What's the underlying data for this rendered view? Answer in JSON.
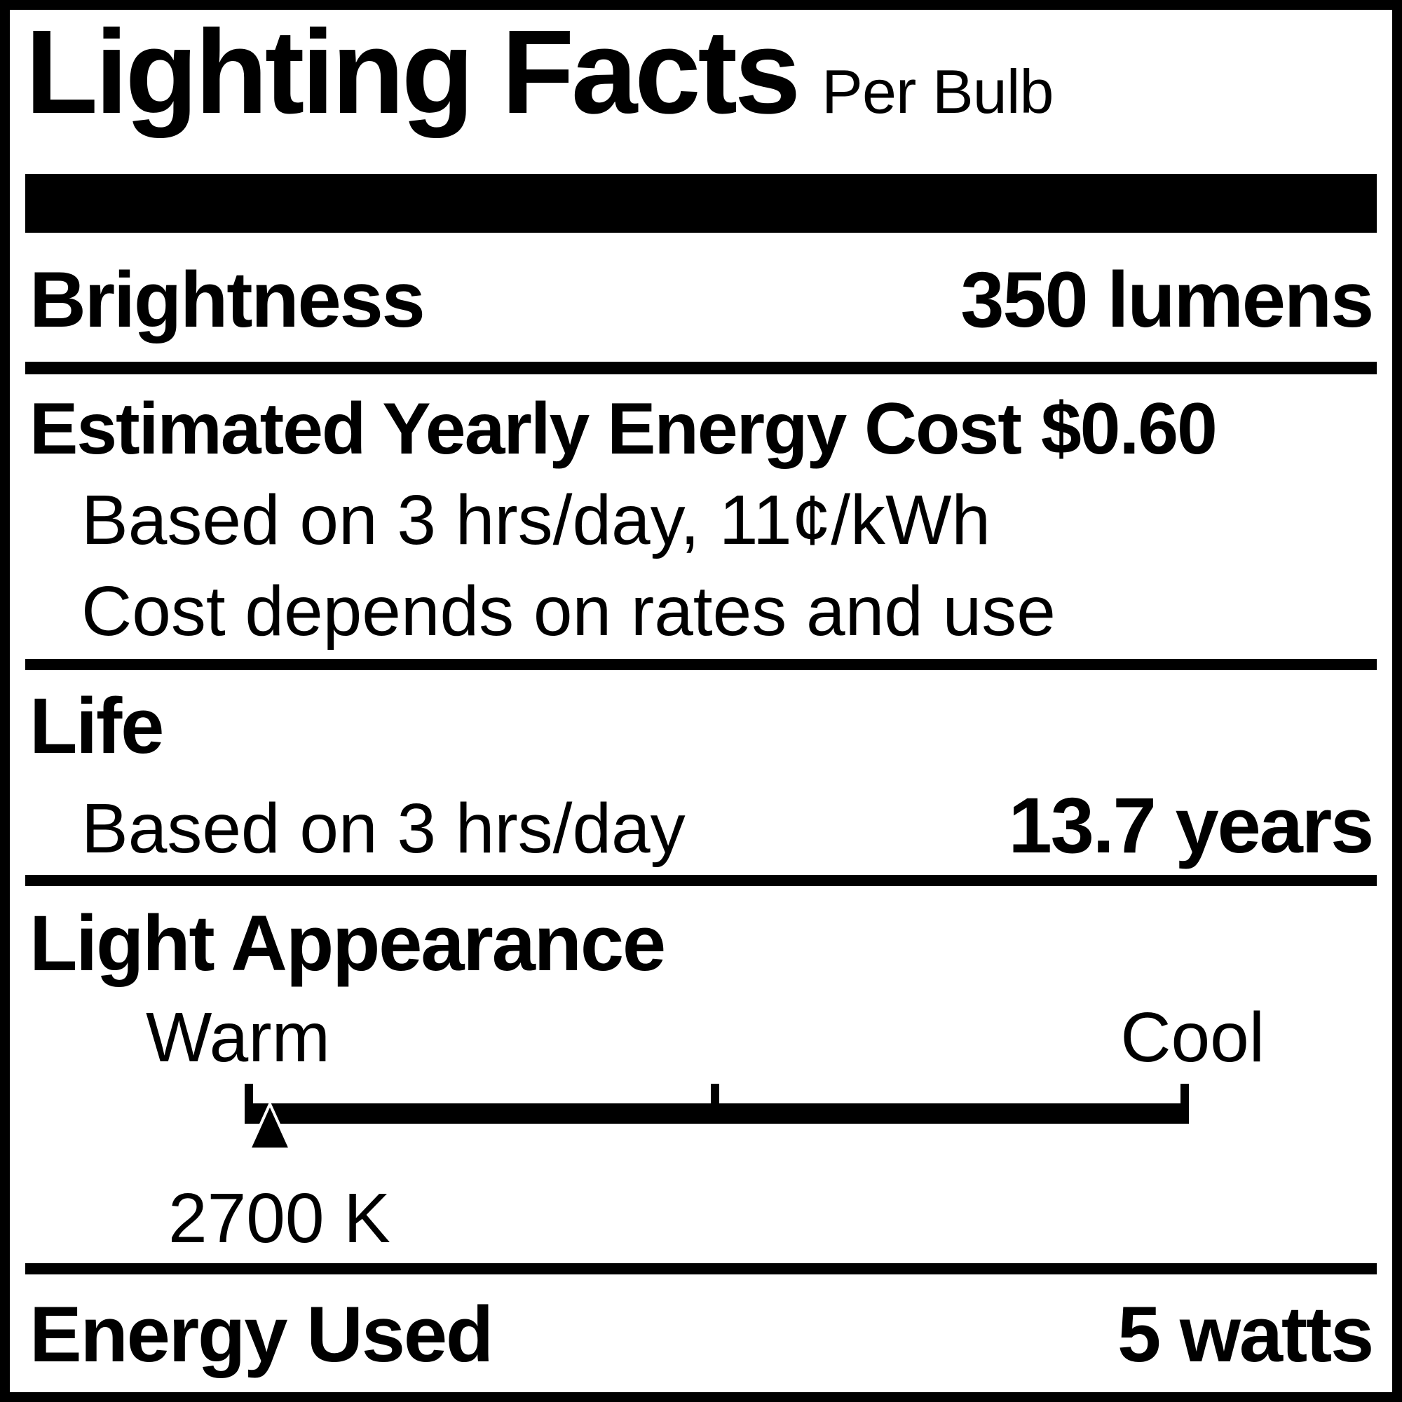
{
  "colors": {
    "ink": "#000000",
    "paper": "#ffffff"
  },
  "label": {
    "title": "Lighting Facts",
    "subtitle": "Per Bulb",
    "brightness": {
      "label": "Brightness",
      "value": "350 lumens"
    },
    "energy_cost": {
      "label": "Estimated Yearly Energy Cost",
      "value": "$0.60",
      "basis_note": "Based on 3 hrs/day, 11¢/kWh",
      "rates_note": "Cost depends on rates and use"
    },
    "life": {
      "label": "Life",
      "basis_note": "Based on 3 hrs/day",
      "value": "13.7 years"
    },
    "light_appearance": {
      "label": "Light Appearance",
      "warm_label": "Warm",
      "cool_label": "Cool",
      "color_temperature": "2700 K",
      "marker_position_pct": 2.7
    },
    "energy_used": {
      "label": "Energy Used",
      "value": "5 watts"
    }
  }
}
